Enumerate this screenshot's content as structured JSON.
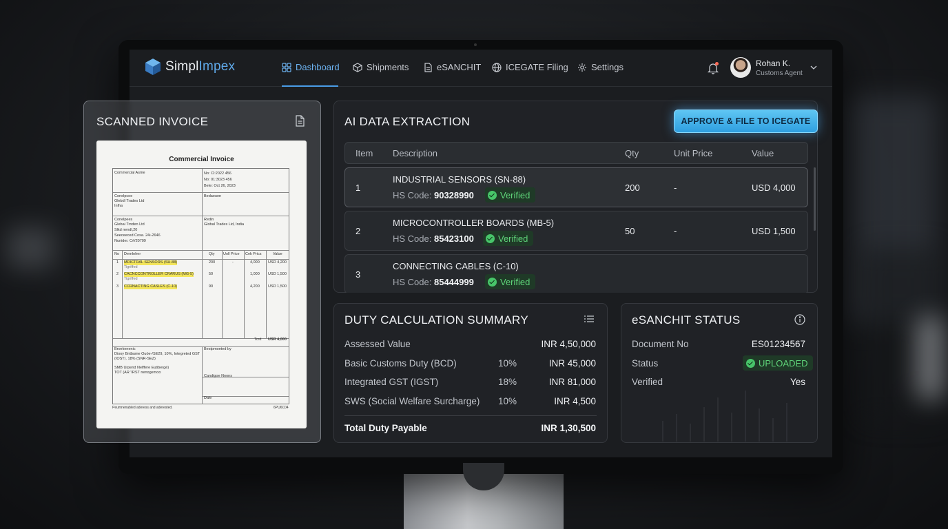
{
  "app": {
    "name_part1": "Simpl",
    "name_part2": "Impex"
  },
  "nav": {
    "items": [
      {
        "label": "Dashboard",
        "icon": "grid-icon",
        "active": true
      },
      {
        "label": "Shipments",
        "icon": "box-icon"
      },
      {
        "label": "eSANCHIT",
        "icon": "document-icon"
      },
      {
        "label": "ICEGATE Filing",
        "icon": "globe-icon"
      },
      {
        "label": "Settings",
        "icon": "gear-icon"
      }
    ]
  },
  "user": {
    "name": "Rohan K.",
    "role": "Customs Agent"
  },
  "scanned": {
    "title": "SCANNED INVOICE",
    "invoice": {
      "heading": "Commercial Invoice",
      "l1": "Commercial Asme",
      "r1a": "No: Cl:2022 456",
      "r1b": "No: 01:3023 456",
      "r1c": "Bete: Oct 26, 2023",
      "l2a": "Conelpcoe",
      "l2b": "Glebdl Trades Ltd",
      "l2c": "Inlha",
      "r2": "Bedaeuen",
      "l3a": "Conelpees",
      "l3b": "Glebai Trnden Ltd",
      "l3c": "Slkd nendl,20",
      "l3d": "Seeceeced Cosa. 24ı-2646",
      "l3e": "Nunider. C#/20709",
      "r3a": "Redin",
      "r3b": "Global Trades Lid, India",
      "h_no": "No",
      "h_desc": "Dernlnher",
      "h_qty": "Qty",
      "h_up": "Uoll Price",
      "h_cp": "Cek Prics",
      "h_val": "Value",
      "i1": "MDICTRAL SENSORS (SH-88)",
      "i1sub": "Tigriffed",
      "i2": "CACNCCONTROLLER CRARUS (MG-5)",
      "i2sub": "Tigriffed",
      "i3": "CCRNACTING CASLES (C-10)",
      "q1": "200",
      "q2": "50",
      "q3": "90",
      "u1": "-",
      "c1": "4,000",
      "c2": "1,000",
      "c3": "4,200",
      "v1": "USD 4,200",
      "v2": "USD 1,500",
      "v3": "USD 1,500",
      "n1": "1",
      "n2": "2",
      "n3": "3",
      "total_label": "Tcrd",
      "total": "USR 4,000",
      "f1": "Broekenenic",
      "f2": "Diooy Bntbume Ouöe-/SE29, 10%, Integreted GST",
      "f3": "(IOST). 18% (SNR-SEZ)",
      "f4": "SMB Urpend Nelffere Eutibergé)",
      "f5": "TOT (AR 'IRST nenogemoo",
      "fr1": "Bestpmoeted by",
      "fr2": "Candigoe Nnons",
      "fr3": "Dale",
      "foot_l": "Peumnenabled aderess and aderested.",
      "foot_r": "6PU6C04"
    }
  },
  "ai": {
    "title": "AI DATA EXTRACTION",
    "approve_label": "APPROVE & FILE TO ICEGATE",
    "columns": [
      "Item",
      "Description",
      "Qty",
      "Unit Price",
      "Value"
    ],
    "hs_prefix": "HS Code: ",
    "verified_label": "Verified",
    "rows": [
      {
        "item": "1",
        "desc": "INDUSTRIAL SENSORS (SN-88)",
        "hs": "90328990",
        "qty": "200",
        "unit": "-",
        "value": "USD 4,000"
      },
      {
        "item": "2",
        "desc": "MICROCONTROLLER BOARDS (MB-5)",
        "hs": "85423100",
        "qty": "50",
        "unit": "-",
        "value": "USD 1,500"
      },
      {
        "item": "3",
        "desc": "CONNECTING CABLES (C-10)",
        "hs": "85444999"
      }
    ]
  },
  "duty": {
    "title": "DUTY CALCULATION SUMMARY",
    "rows": [
      {
        "label": "Assessed Value",
        "pct": "",
        "amount": "INR 4,50,000"
      },
      {
        "label": "Basic Customs Duty (BCD)",
        "pct": "10%",
        "amount": "INR 45,000"
      },
      {
        "label": "Integrated GST (IGST)",
        "pct": "18%",
        "amount": "INR 81,000"
      },
      {
        "label": "SWS (Social Welfare Surcharge)",
        "pct": "10%",
        "amount": "INR 4,500"
      }
    ],
    "total_label": "Total Duty Payable",
    "total_amount": "INR 1,30,500"
  },
  "esanchit": {
    "title": "eSANCHIT STATUS",
    "doc_label": "Document No",
    "doc_value": "ES01234567",
    "status_label": "Status",
    "status_value": "UPLOADED",
    "verified_label": "Verified",
    "verified_value": "Yes"
  },
  "colors": {
    "accent": "#4a9de8",
    "success": "#48c56a",
    "button": "#3fb0ea"
  }
}
